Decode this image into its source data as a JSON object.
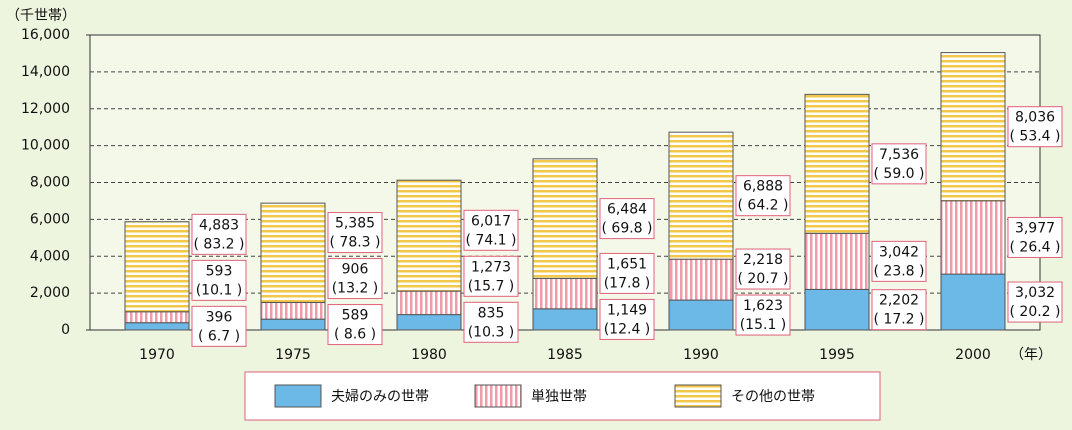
{
  "chart_data": {
    "type": "stacked-bar",
    "y_unit": "（千世帯）",
    "x_unit": "（年）",
    "categories": [
      "1970",
      "1975",
      "1980",
      "1985",
      "1990",
      "1995",
      "2000"
    ],
    "series": [
      {
        "name": "夫婦のみの世帯",
        "color": "#6cb8e6",
        "pattern": "solid",
        "values": [
          396,
          589,
          835,
          1149,
          1623,
          2202,
          3032
        ],
        "value_labels": [
          "396",
          "589",
          "835",
          "1,149",
          "1,623",
          "2,202",
          "3,032"
        ],
        "share_labels": [
          "( 6.7 )",
          "( 8.6 )",
          "(10.3 )",
          "(12.4 )",
          "(15.1 )",
          "( 17.2 )",
          "( 20.2 )"
        ]
      },
      {
        "name": "単独世帯",
        "color": "#f19aa8",
        "pattern": "vertical",
        "values": [
          593,
          906,
          1273,
          1651,
          2218,
          3042,
          3977
        ],
        "value_labels": [
          "593",
          "906",
          "1,273",
          "1,651",
          "2,218",
          "3,042",
          "3,977"
        ],
        "share_labels": [
          "(10.1 )",
          "(13.2 )",
          "(15.7 )",
          "(17.8 )",
          "( 20.7 )",
          "( 23.8 )",
          "( 26.4 )"
        ]
      },
      {
        "name": "その他の世帯",
        "color": "#f2c84b",
        "pattern": "horizontal",
        "values": [
          4883,
          5385,
          6017,
          6484,
          6888,
          7536,
          8036
        ],
        "value_labels": [
          "4,883",
          "5,385",
          "6,017",
          "6,484",
          "6,888",
          "7,536",
          "8,036"
        ],
        "share_labels": [
          "( 83.2 )",
          "( 78.3 )",
          "( 74.1 )",
          "( 69.8 )",
          "( 64.2 )",
          "( 59.0 )",
          "( 53.4 )"
        ]
      }
    ],
    "ylim": [
      0,
      16000
    ],
    "yticks": [
      0,
      {
        "value": 2000,
        "label": "2,000"
      },
      {
        "value": 4000,
        "label": "4,000"
      },
      {
        "value": 6000,
        "label": "6,000"
      },
      {
        "value": 8000,
        "label": "8,000"
      },
      {
        "value": 10000,
        "label": "10,000"
      },
      {
        "value": 12000,
        "label": "12,000"
      },
      {
        "value": 14000,
        "label": "14,000"
      },
      {
        "value": 16000,
        "label": "16,000"
      }
    ],
    "grid": true
  }
}
